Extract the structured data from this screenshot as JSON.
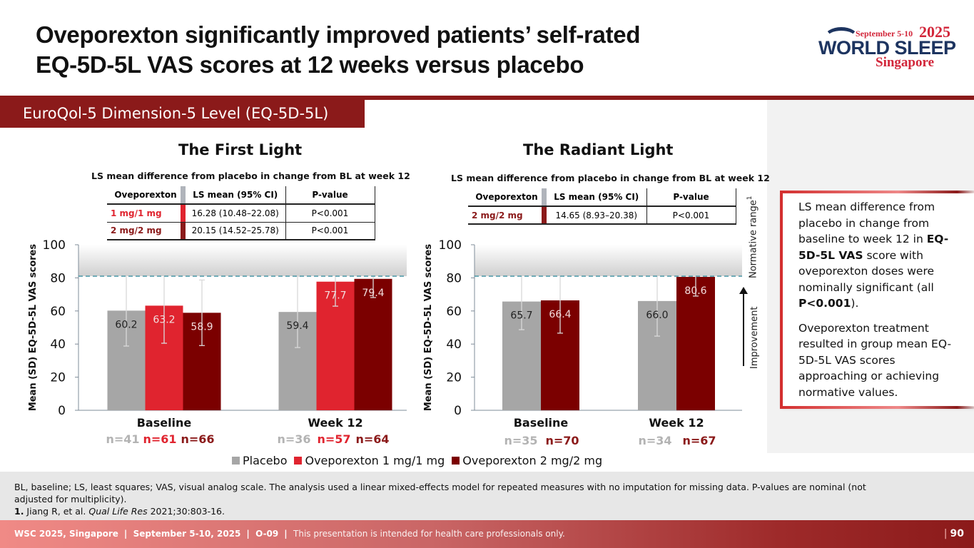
{
  "slide": {
    "title_line1": "Oveporexton significantly improved patients’ self-rated",
    "title_line2": "EQ-5D-5L VAS scores at 12 weeks versus placebo",
    "section_tab": "EuroQol-5 Dimension-5 Level (EQ-5D-5L)",
    "logo": {
      "dates": "September 5-10",
      "year": "2025",
      "name": "WORLD SLEEP",
      "city": "Singapore"
    }
  },
  "colors": {
    "placebo": "#a6a6a6",
    "dose1": "#e0242f",
    "dose2": "#7b0000",
    "brand": "#8b1a1a",
    "normative_line": "#3a8fa0"
  },
  "studies": [
    {
      "title": "The First Light",
      "table_caption": "LS mean difference from placebo in change from BL at week 12",
      "table_headers": [
        "Oveporexton",
        "LS mean (95% CI)",
        "P-value"
      ],
      "table_rows": [
        {
          "dose": "1 mg/1 mg",
          "ls_mean": "16.28 (10.48–22.08)",
          "p": "P<0.001",
          "color": "#e0242f"
        },
        {
          "dose": "2 mg/2 mg",
          "ls_mean": "20.15 (14.52–25.78)",
          "p": "P<0.001",
          "color": "#8b1a1a"
        }
      ]
    },
    {
      "title": "The Radiant Light",
      "table_caption": "LS mean difference from placebo in change from BL at week 12",
      "table_headers": [
        "Oveporexton",
        "LS mean (95% CI)",
        "P-value"
      ],
      "table_rows": [
        {
          "dose": "2 mg/2 mg",
          "ls_mean": "14.65 (8.93–20.38)",
          "p": "P<0.001",
          "color": "#8b1a1a"
        }
      ]
    }
  ],
  "chart_data": [
    {
      "type": "bar",
      "title": "The First Light",
      "ylabel": "Mean (SD) EQ-5D-5L VAS scores",
      "xlabel": "",
      "ylim": [
        0,
        100
      ],
      "yticks": [
        0,
        20,
        40,
        60,
        80,
        100
      ],
      "normative_threshold": 81,
      "categories": [
        "Baseline",
        "Week 12"
      ],
      "series": [
        {
          "name": "Placebo",
          "key": "placebo",
          "values": [
            60.2,
            59.4
          ],
          "sd": [
            21.4,
            21.5
          ],
          "labels": [
            "60.2",
            "59.4"
          ],
          "n": [
            "n=41",
            "n=36"
          ]
        },
        {
          "name": "Oveporexton 1 mg/1 mg",
          "key": "dose1",
          "values": [
            63.2,
            77.7
          ],
          "sd": [
            22.7,
            14.8
          ],
          "labels": [
            "63.2",
            "77.7"
          ],
          "n": [
            "n=61",
            "n=57"
          ]
        },
        {
          "name": "Oveporexton 2 mg/2 mg",
          "key": "dose2",
          "values": [
            58.9,
            79.4
          ],
          "sd": [
            19.8,
            11.3
          ],
          "labels": [
            "58.9",
            "79.4"
          ],
          "n": [
            "n=66",
            "n=64"
          ]
        }
      ]
    },
    {
      "type": "bar",
      "title": "The Radiant Light",
      "ylabel": "Mean (SD) EQ-5D-5L VAS scores",
      "xlabel": "",
      "ylim": [
        0,
        100
      ],
      "yticks": [
        0,
        20,
        40,
        60,
        80,
        100
      ],
      "normative_threshold": 81,
      "categories": [
        "Baseline",
        "Week 12"
      ],
      "series": [
        {
          "name": "Placebo",
          "key": "placebo",
          "values": [
            65.7,
            66.0
          ],
          "sd": [
            17.0,
            21.2
          ],
          "labels": [
            "65.7",
            "66.0"
          ],
          "n": [
            "n=35",
            "n=34"
          ]
        },
        {
          "name": "Oveporexton 2 mg/2 mg",
          "key": "dose2",
          "values": [
            66.4,
            80.6
          ],
          "sd": [
            19.8,
            11.6
          ],
          "labels": [
            "66.4",
            "80.6"
          ],
          "n": [
            "n=70",
            "n=67"
          ]
        }
      ]
    }
  ],
  "legend": [
    {
      "label": "Placebo",
      "key": "placebo"
    },
    {
      "label": "Oveporexton 1 mg/1 mg",
      "key": "dose1"
    },
    {
      "label": "Oveporexton 2 mg/2 mg",
      "key": "dose2"
    }
  ],
  "annotations": {
    "normative_range": "Normative range",
    "normative_sup": "1",
    "improvement": "Improvement"
  },
  "callout": {
    "p1_a": "LS mean difference from placebo in change from baseline to week 12 in ",
    "p1_b": "EQ-5D-5L VAS",
    "p1_c": " score with oveporexton doses were nominally significant (all ",
    "p1_d": "P<0.001",
    "p1_e": ").",
    "p2": "Oveporexton treatment resulted in group mean EQ-5D-5L VAS scores approaching or achieving normative values."
  },
  "footnote": {
    "line1": "BL, baseline; LS, least squares; VAS, visual analog scale. The analysis used a linear mixed-effects model for repeated measures with no imputation for missing data. P-values are nominal (not adjusted for multiplicity).",
    "ref_num": "1.",
    "ref_authors": " Jiang R, et al. ",
    "ref_journal": "Qual Life Res",
    "ref_rest": " 2021;30:803-16."
  },
  "footer": {
    "conf": "WSC 2025, Singapore",
    "dates": "September 5-10, 2025",
    "code": "O-09",
    "disclaimer": "This presentation is intended for health care professionals only.",
    "sep": "|",
    "page": "90"
  }
}
